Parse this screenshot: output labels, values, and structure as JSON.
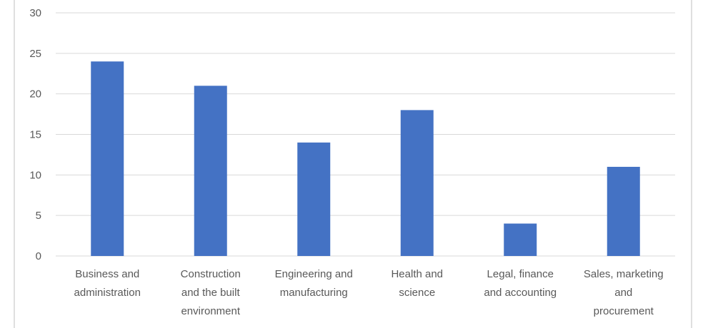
{
  "chart_data": {
    "type": "bar",
    "title": "",
    "xlabel": "",
    "ylabel": "",
    "categories": [
      "Business and administration",
      "Construction and the built environment",
      "Engineering and manufacturing",
      "Health and science",
      "Legal, finance and accounting",
      "Sales, marketing and procurement"
    ],
    "category_label_lines": [
      [
        "Business and",
        "administration"
      ],
      [
        "Construction",
        "and the built",
        "environment"
      ],
      [
        "Engineering and",
        "manufacturing"
      ],
      [
        "Health and",
        "science"
      ],
      [
        "Legal, finance",
        "and accounting"
      ],
      [
        "Sales, marketing",
        "and",
        "procurement"
      ]
    ],
    "values": [
      24,
      21,
      14,
      18,
      4,
      11
    ],
    "ylim": [
      0,
      30
    ],
    "yticks": [
      0,
      5,
      10,
      15,
      20,
      25,
      30
    ],
    "grid": true,
    "legend": "none",
    "colors": {
      "bar": "#4472C4",
      "grid": "#D9D9D9",
      "tick_text": "#595959",
      "frame": "#BFBFBF"
    }
  }
}
